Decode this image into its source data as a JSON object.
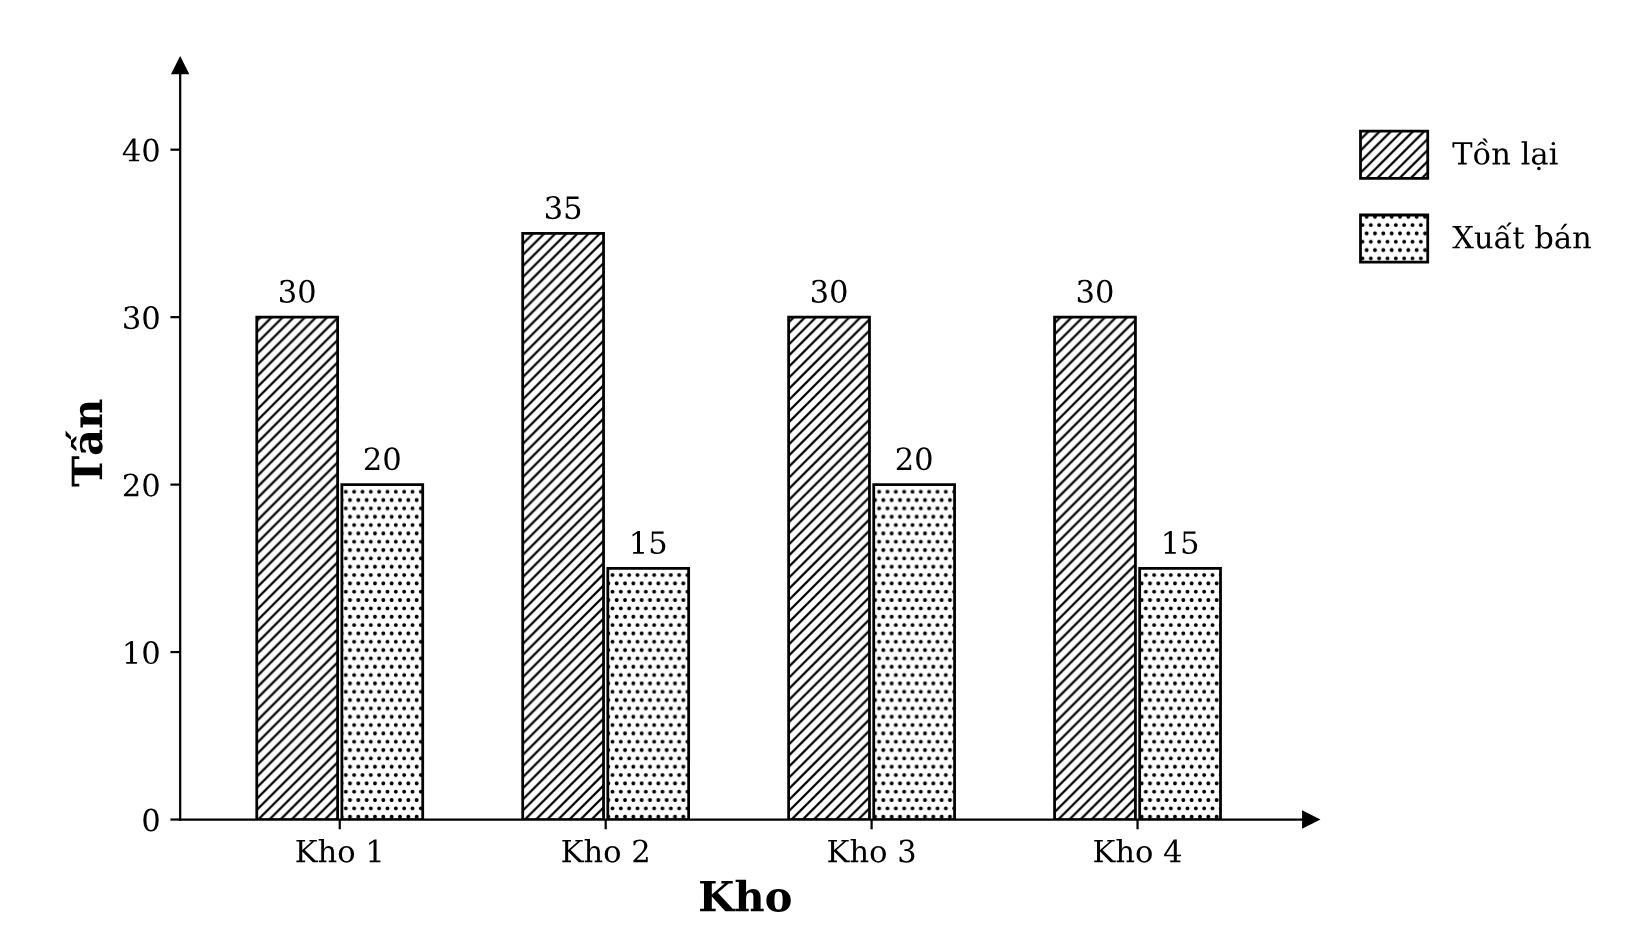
{
  "chart_data": {
    "type": "bar",
    "xlabel": "Kho",
    "ylabel": "Tấn",
    "categories": [
      "Kho 1",
      "Kho 2",
      "Kho 3",
      "Kho 4"
    ],
    "series": [
      {
        "name": "Tồn lại",
        "color": "#000000",
        "values": [
          30,
          35,
          30,
          30
        ]
      },
      {
        "name": "Xuất bán",
        "color": "#000000",
        "values": [
          20,
          15,
          20,
          15
        ]
      }
    ],
    "ylim": [
      0,
      45
    ],
    "yticks": [
      0,
      10,
      20,
      30,
      40
    ],
    "grid": false,
    "legend": "right",
    "data_labels": true
  }
}
